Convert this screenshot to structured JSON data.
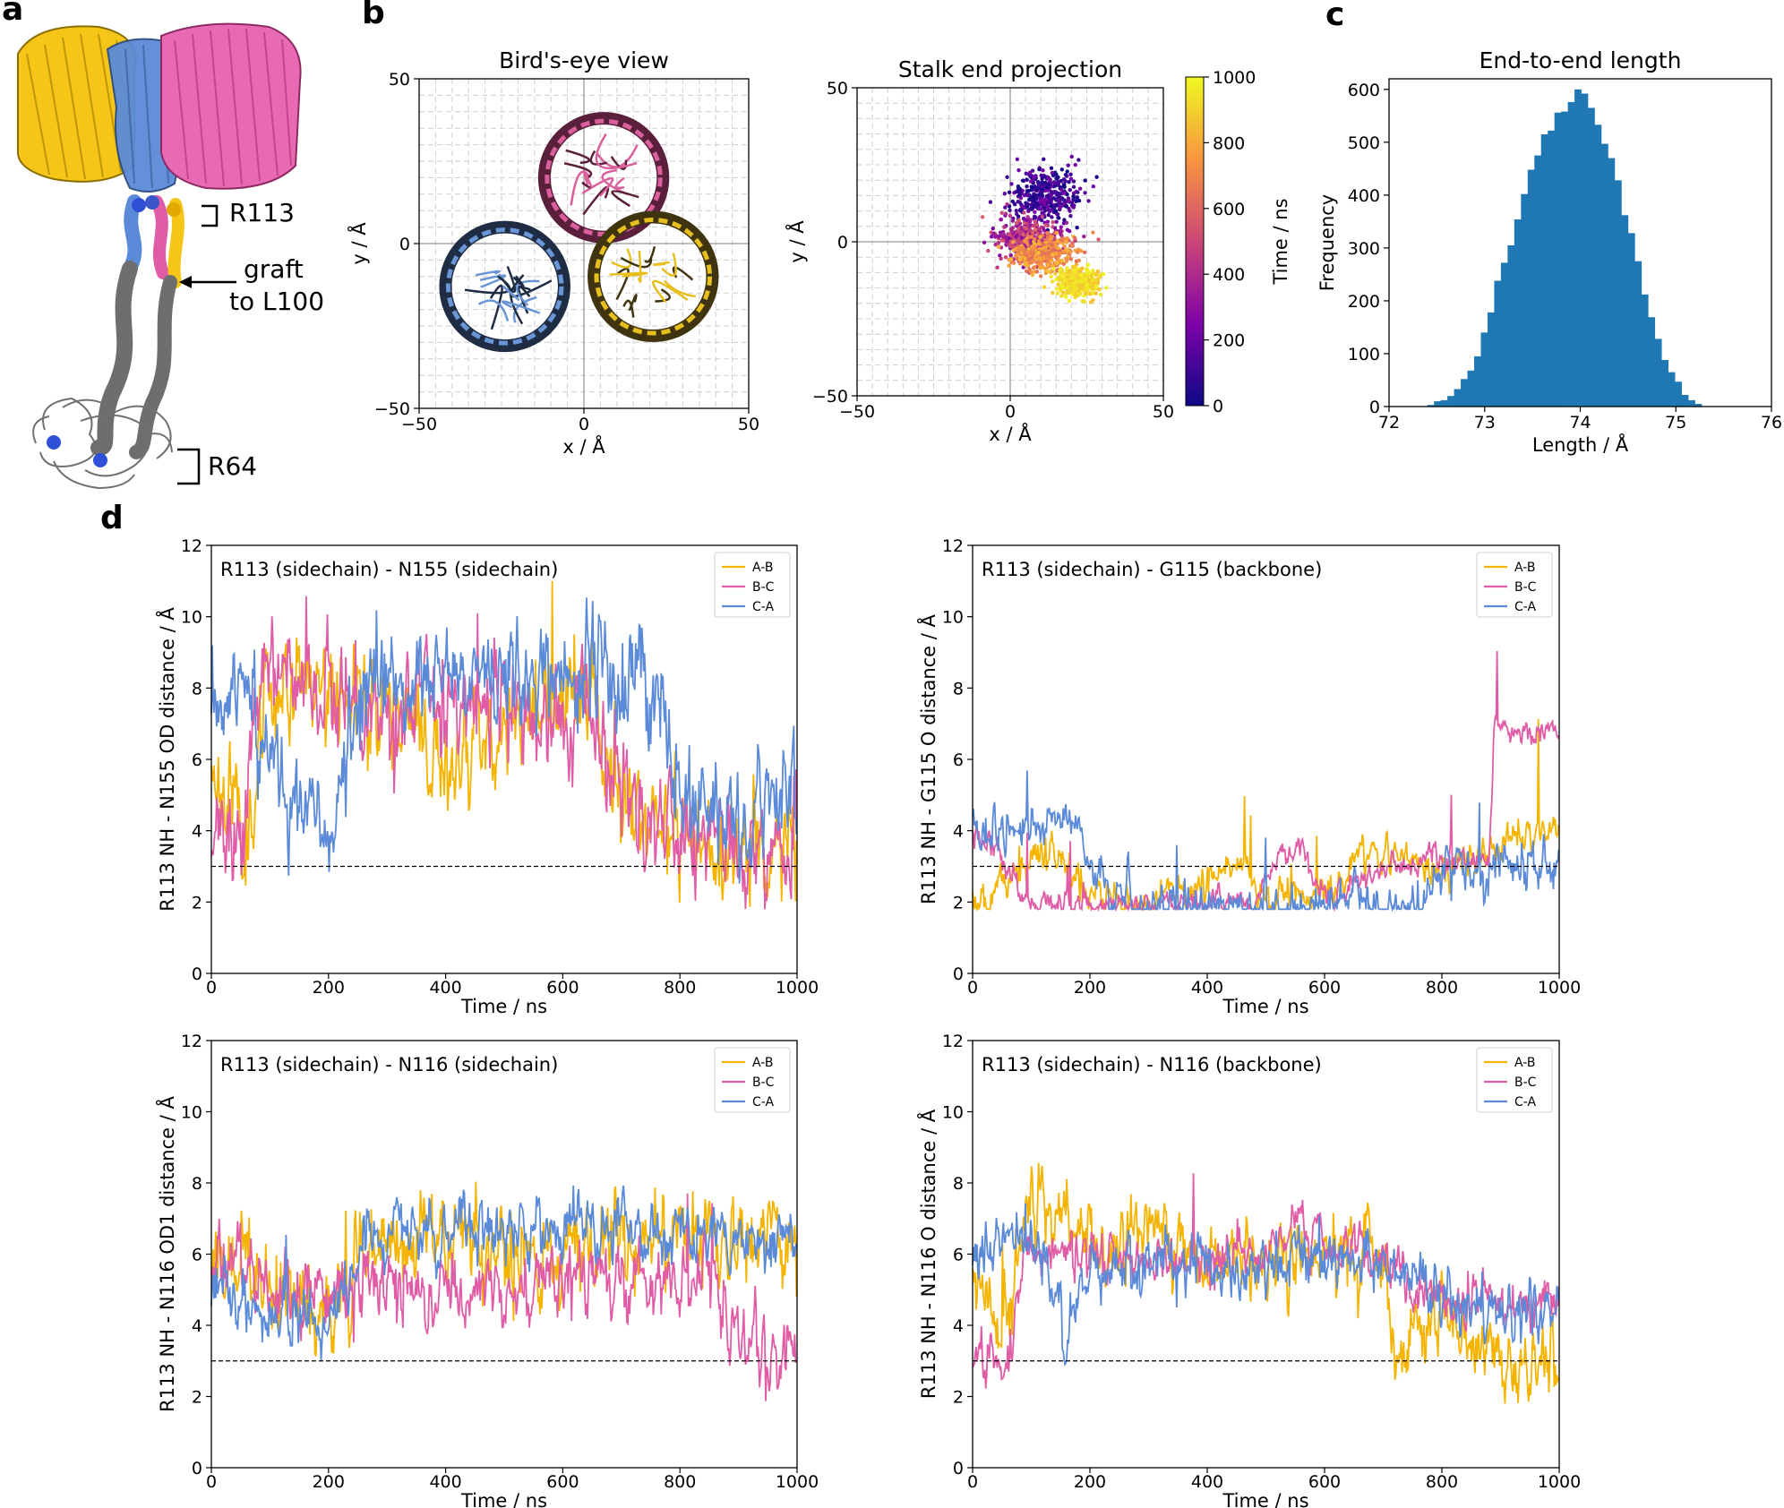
{
  "panel_letters": {
    "a": "a",
    "b": "b",
    "c": "c",
    "d": "d"
  },
  "structure": {
    "labels": {
      "r113": "R113",
      "graft_line1": "graft",
      "graft_line2": "to L100",
      "r64": "R64"
    },
    "colors": {
      "chain_a": "#f5c518",
      "chain_b": "#e05ca6",
      "chain_c": "#5b8bd8",
      "stalk": "#6e6e6e"
    }
  },
  "chart_data": [
    {
      "id": "birdseye",
      "type": "scatter",
      "title": "Bird's-eye view",
      "xlabel": "x / Å",
      "ylabel": "y / Å",
      "xlim": [
        -50,
        50
      ],
      "ylim": [
        -50,
        50
      ],
      "xticks": [
        -50,
        0,
        50
      ],
      "yticks": [
        -50,
        0,
        50
      ],
      "grid": true,
      "rings": [
        {
          "name": "B",
          "center": [
            6,
            20
          ],
          "radius": 18,
          "color": "#d95f9d",
          "dark": "#5a1f3a"
        },
        {
          "name": "C",
          "center": [
            -24,
            -13
          ],
          "radius": 18,
          "color": "#6a96d8",
          "dark": "#1f2d44"
        },
        {
          "name": "A",
          "center": [
            21,
            -10
          ],
          "radius": 18,
          "color": "#e7c01f",
          "dark": "#403410"
        }
      ]
    },
    {
      "id": "stalk",
      "type": "scatter",
      "title": "Stalk end projection",
      "xlabel": "x / Å",
      "ylabel": "y / Å",
      "xlim": [
        -50,
        50
      ],
      "ylim": [
        -50,
        50
      ],
      "xticks": [
        -50,
        0,
        50
      ],
      "yticks": [
        -50,
        0,
        50
      ],
      "grid": true,
      "colorbar": {
        "label": "Time / ns",
        "min": 0,
        "max": 1000,
        "ticks": [
          0,
          200,
          400,
          600,
          800,
          1000
        ],
        "colormap": "plasma"
      },
      "clusters": [
        {
          "time_range": [
            0,
            250
          ],
          "center": [
            11,
            15
          ],
          "spread": [
            10,
            8
          ]
        },
        {
          "time_range": [
            250,
            600
          ],
          "center": [
            6,
            1
          ],
          "spread": [
            11,
            6
          ]
        },
        {
          "time_range": [
            600,
            850
          ],
          "center": [
            11,
            -4
          ],
          "spread": [
            9,
            5
          ]
        },
        {
          "time_range": [
            850,
            1000
          ],
          "center": [
            22,
            -13
          ],
          "spread": [
            6,
            4
          ]
        }
      ]
    },
    {
      "id": "length",
      "type": "bar",
      "title": "End-to-end length",
      "xlabel": "Length / Å",
      "ylabel": "Frequency",
      "xlim": [
        72,
        76
      ],
      "ylim": [
        0,
        620
      ],
      "xticks": [
        72,
        73,
        74,
        75,
        76
      ],
      "yticks": [
        0,
        100,
        200,
        300,
        400,
        500,
        600
      ],
      "color": "#1f77b4",
      "bin_start": 72.4,
      "bin_width": 0.07,
      "values": [
        3,
        10,
        12,
        20,
        33,
        52,
        68,
        95,
        140,
        178,
        238,
        272,
        305,
        354,
        402,
        448,
        475,
        515,
        522,
        556,
        558,
        576,
        600,
        592,
        565,
        533,
        497,
        470,
        428,
        362,
        328,
        275,
        212,
        169,
        128,
        88,
        65,
        47,
        22,
        12,
        5
      ]
    },
    {
      "id": "d1",
      "type": "line",
      "title": "R113 (sidechain) - N155 (sidechain)",
      "xlabel": "Time / ns",
      "ylabel": "R113 NH - N155 OD distance / Å",
      "xlim": [
        0,
        1000
      ],
      "ylim": [
        0,
        12
      ],
      "xticks": [
        0,
        200,
        400,
        600,
        800,
        1000
      ],
      "yticks": [
        0,
        2,
        4,
        6,
        8,
        10,
        12
      ],
      "threshold": 3,
      "legend": [
        "A-B",
        "B-C",
        "C-A"
      ],
      "series": [
        {
          "name": "A-B",
          "color": "#f5b400",
          "noise": 1.0,
          "seed": 11,
          "keypoints": [
            [
              0,
              6
            ],
            [
              30,
              5
            ],
            [
              60,
              4
            ],
            [
              100,
              8
            ],
            [
              140,
              8.5
            ],
            [
              200,
              8
            ],
            [
              300,
              7.5
            ],
            [
              400,
              6
            ],
            [
              500,
              7
            ],
            [
              600,
              7.5
            ],
            [
              650,
              8
            ],
            [
              680,
              6
            ],
            [
              720,
              4.5
            ],
            [
              800,
              4
            ],
            [
              900,
              3.5
            ],
            [
              1000,
              3.5
            ]
          ]
        },
        {
          "name": "B-C",
          "color": "#e05ca6",
          "noise": 1.0,
          "seed": 23,
          "keypoints": [
            [
              0,
              4
            ],
            [
              40,
              3
            ],
            [
              80,
              8
            ],
            [
              200,
              8
            ],
            [
              300,
              7.5
            ],
            [
              400,
              7.5
            ],
            [
              500,
              7.5
            ],
            [
              600,
              7
            ],
            [
              660,
              7
            ],
            [
              700,
              5
            ],
            [
              800,
              4
            ],
            [
              900,
              3.5
            ],
            [
              1000,
              3.5
            ]
          ]
        },
        {
          "name": "C-A",
          "color": "#5b8bd8",
          "noise": 1.0,
          "seed": 37,
          "keypoints": [
            [
              0,
              8
            ],
            [
              50,
              7.5
            ],
            [
              100,
              6
            ],
            [
              150,
              5
            ],
            [
              200,
              3.5
            ],
            [
              260,
              8
            ],
            [
              400,
              8
            ],
            [
              500,
              8.5
            ],
            [
              600,
              8.5
            ],
            [
              700,
              8.5
            ],
            [
              760,
              8
            ],
            [
              800,
              5
            ],
            [
              900,
              4.5
            ],
            [
              1000,
              5
            ]
          ]
        }
      ]
    },
    {
      "id": "d2",
      "type": "line",
      "title": "R113 (sidechain) - G115 (backbone)",
      "xlabel": "Time / ns",
      "ylabel": "R113 NH - G115 O distance / Å",
      "xlim": [
        0,
        1000
      ],
      "ylim": [
        0,
        12
      ],
      "xticks": [
        0,
        200,
        400,
        600,
        800,
        1000
      ],
      "yticks": [
        0,
        2,
        4,
        6,
        8,
        10,
        12
      ],
      "threshold": 3,
      "legend": [
        "A-B",
        "B-C",
        "C-A"
      ],
      "series": [
        {
          "name": "A-B",
          "color": "#f5b400",
          "noise": 0.35,
          "seed": 51,
          "keypoints": [
            [
              0,
              2
            ],
            [
              60,
              2.5
            ],
            [
              140,
              3.5
            ],
            [
              200,
              2.2
            ],
            [
              300,
              2
            ],
            [
              380,
              2.5
            ],
            [
              450,
              3
            ],
            [
              500,
              2.2
            ],
            [
              600,
              2.2
            ],
            [
              650,
              3
            ],
            [
              700,
              3.5
            ],
            [
              760,
              3
            ],
            [
              820,
              3
            ],
            [
              880,
              3.5
            ],
            [
              950,
              4
            ],
            [
              1000,
              4
            ]
          ]
        },
        {
          "name": "B-C",
          "color": "#e05ca6",
          "noise": 0.25,
          "seed": 62,
          "keypoints": [
            [
              0,
              3.8
            ],
            [
              40,
              3.6
            ],
            [
              90,
              2
            ],
            [
              300,
              1.9
            ],
            [
              400,
              1.9
            ],
            [
              480,
              2
            ],
            [
              520,
              3.5
            ],
            [
              560,
              3.5
            ],
            [
              600,
              2
            ],
            [
              700,
              3
            ],
            [
              760,
              3.2
            ],
            [
              880,
              3.1
            ],
            [
              890,
              6.8
            ],
            [
              1000,
              6.8
            ]
          ]
        },
        {
          "name": "C-A",
          "color": "#5b8bd8",
          "noise": 0.45,
          "seed": 73,
          "keypoints": [
            [
              0,
              4
            ],
            [
              100,
              4
            ],
            [
              160,
              4.5
            ],
            [
              200,
              3.5
            ],
            [
              240,
              2
            ],
            [
              400,
              1.9
            ],
            [
              600,
              1.9
            ],
            [
              700,
              1.9
            ],
            [
              760,
              2
            ],
            [
              800,
              3
            ],
            [
              900,
              3
            ],
            [
              1000,
              3
            ]
          ]
        }
      ]
    },
    {
      "id": "d3",
      "type": "line",
      "title": "R113 (sidechain) - N116 (sidechain)",
      "xlabel": "Time / ns",
      "ylabel": "R113 NH - N116 OD1 distance / Å",
      "xlim": [
        0,
        1000
      ],
      "ylim": [
        0,
        12
      ],
      "xticks": [
        0,
        200,
        400,
        600,
        800,
        1000
      ],
      "yticks": [
        0,
        2,
        4,
        6,
        8,
        10,
        12
      ],
      "threshold": 3,
      "legend": [
        "A-B",
        "B-C",
        "C-A"
      ],
      "series": [
        {
          "name": "A-B",
          "color": "#f5b400",
          "noise": 0.9,
          "seed": 81,
          "keypoints": [
            [
              0,
              6
            ],
            [
              100,
              5
            ],
            [
              200,
              4.5
            ],
            [
              270,
              6.5
            ],
            [
              400,
              6.5
            ],
            [
              500,
              6
            ],
            [
              600,
              6
            ],
            [
              700,
              6.5
            ],
            [
              800,
              6.5
            ],
            [
              900,
              6.5
            ],
            [
              1000,
              6.5
            ]
          ]
        },
        {
          "name": "B-C",
          "color": "#e05ca6",
          "noise": 0.7,
          "seed": 92,
          "keypoints": [
            [
              0,
              6
            ],
            [
              100,
              5
            ],
            [
              300,
              5
            ],
            [
              500,
              5
            ],
            [
              600,
              5.5
            ],
            [
              700,
              5.5
            ],
            [
              800,
              5.5
            ],
            [
              860,
              5.5
            ],
            [
              880,
              3.8
            ],
            [
              940,
              3.4
            ],
            [
              1000,
              3.4
            ]
          ]
        },
        {
          "name": "C-A",
          "color": "#5b8bd8",
          "noise": 0.6,
          "seed": 103,
          "keypoints": [
            [
              0,
              5
            ],
            [
              150,
              4
            ],
            [
              200,
              4
            ],
            [
              270,
              6.7
            ],
            [
              400,
              6.7
            ],
            [
              600,
              6.7
            ],
            [
              700,
              6.8
            ],
            [
              800,
              6.5
            ],
            [
              1000,
              6.5
            ]
          ]
        }
      ]
    },
    {
      "id": "d4",
      "type": "line",
      "title": "R113 (sidechain) - N116 (backbone)",
      "xlabel": "Time / ns",
      "ylabel": "R113 NH - N116 O distance / Å",
      "xlim": [
        0,
        1000
      ],
      "ylim": [
        0,
        12
      ],
      "xticks": [
        0,
        200,
        400,
        600,
        800,
        1000
      ],
      "yticks": [
        0,
        2,
        4,
        6,
        8,
        10,
        12
      ],
      "threshold": 3,
      "legend": [
        "A-B",
        "B-C",
        "C-A"
      ],
      "series": [
        {
          "name": "A-B",
          "color": "#f5b400",
          "noise": 0.7,
          "seed": 111,
          "keypoints": [
            [
              0,
              6
            ],
            [
              50,
              3.5
            ],
            [
              100,
              7.5
            ],
            [
              160,
              7
            ],
            [
              220,
              6
            ],
            [
              300,
              7
            ],
            [
              400,
              5.8
            ],
            [
              500,
              5.5
            ],
            [
              600,
              6
            ],
            [
              700,
              6
            ],
            [
              720,
              3
            ],
            [
              800,
              4.5
            ],
            [
              880,
              3
            ],
            [
              1000,
              3
            ]
          ]
        },
        {
          "name": "B-C",
          "color": "#e05ca6",
          "noise": 0.45,
          "seed": 122,
          "keypoints": [
            [
              0,
              3.2
            ],
            [
              60,
              3
            ],
            [
              90,
              6
            ],
            [
              200,
              6
            ],
            [
              400,
              5.8
            ],
            [
              500,
              6
            ],
            [
              560,
              7
            ],
            [
              620,
              6
            ],
            [
              700,
              6
            ],
            [
              760,
              5
            ],
            [
              900,
              4.5
            ],
            [
              1000,
              4.5
            ]
          ]
        },
        {
          "name": "C-A",
          "color": "#5b8bd8",
          "noise": 0.55,
          "seed": 133,
          "keypoints": [
            [
              0,
              6
            ],
            [
              100,
              6.5
            ],
            [
              160,
              4
            ],
            [
              200,
              5.5
            ],
            [
              300,
              5.8
            ],
            [
              500,
              5.8
            ],
            [
              700,
              5.9
            ],
            [
              760,
              5.5
            ],
            [
              800,
              4.5
            ],
            [
              1000,
              4.5
            ]
          ]
        }
      ]
    }
  ]
}
